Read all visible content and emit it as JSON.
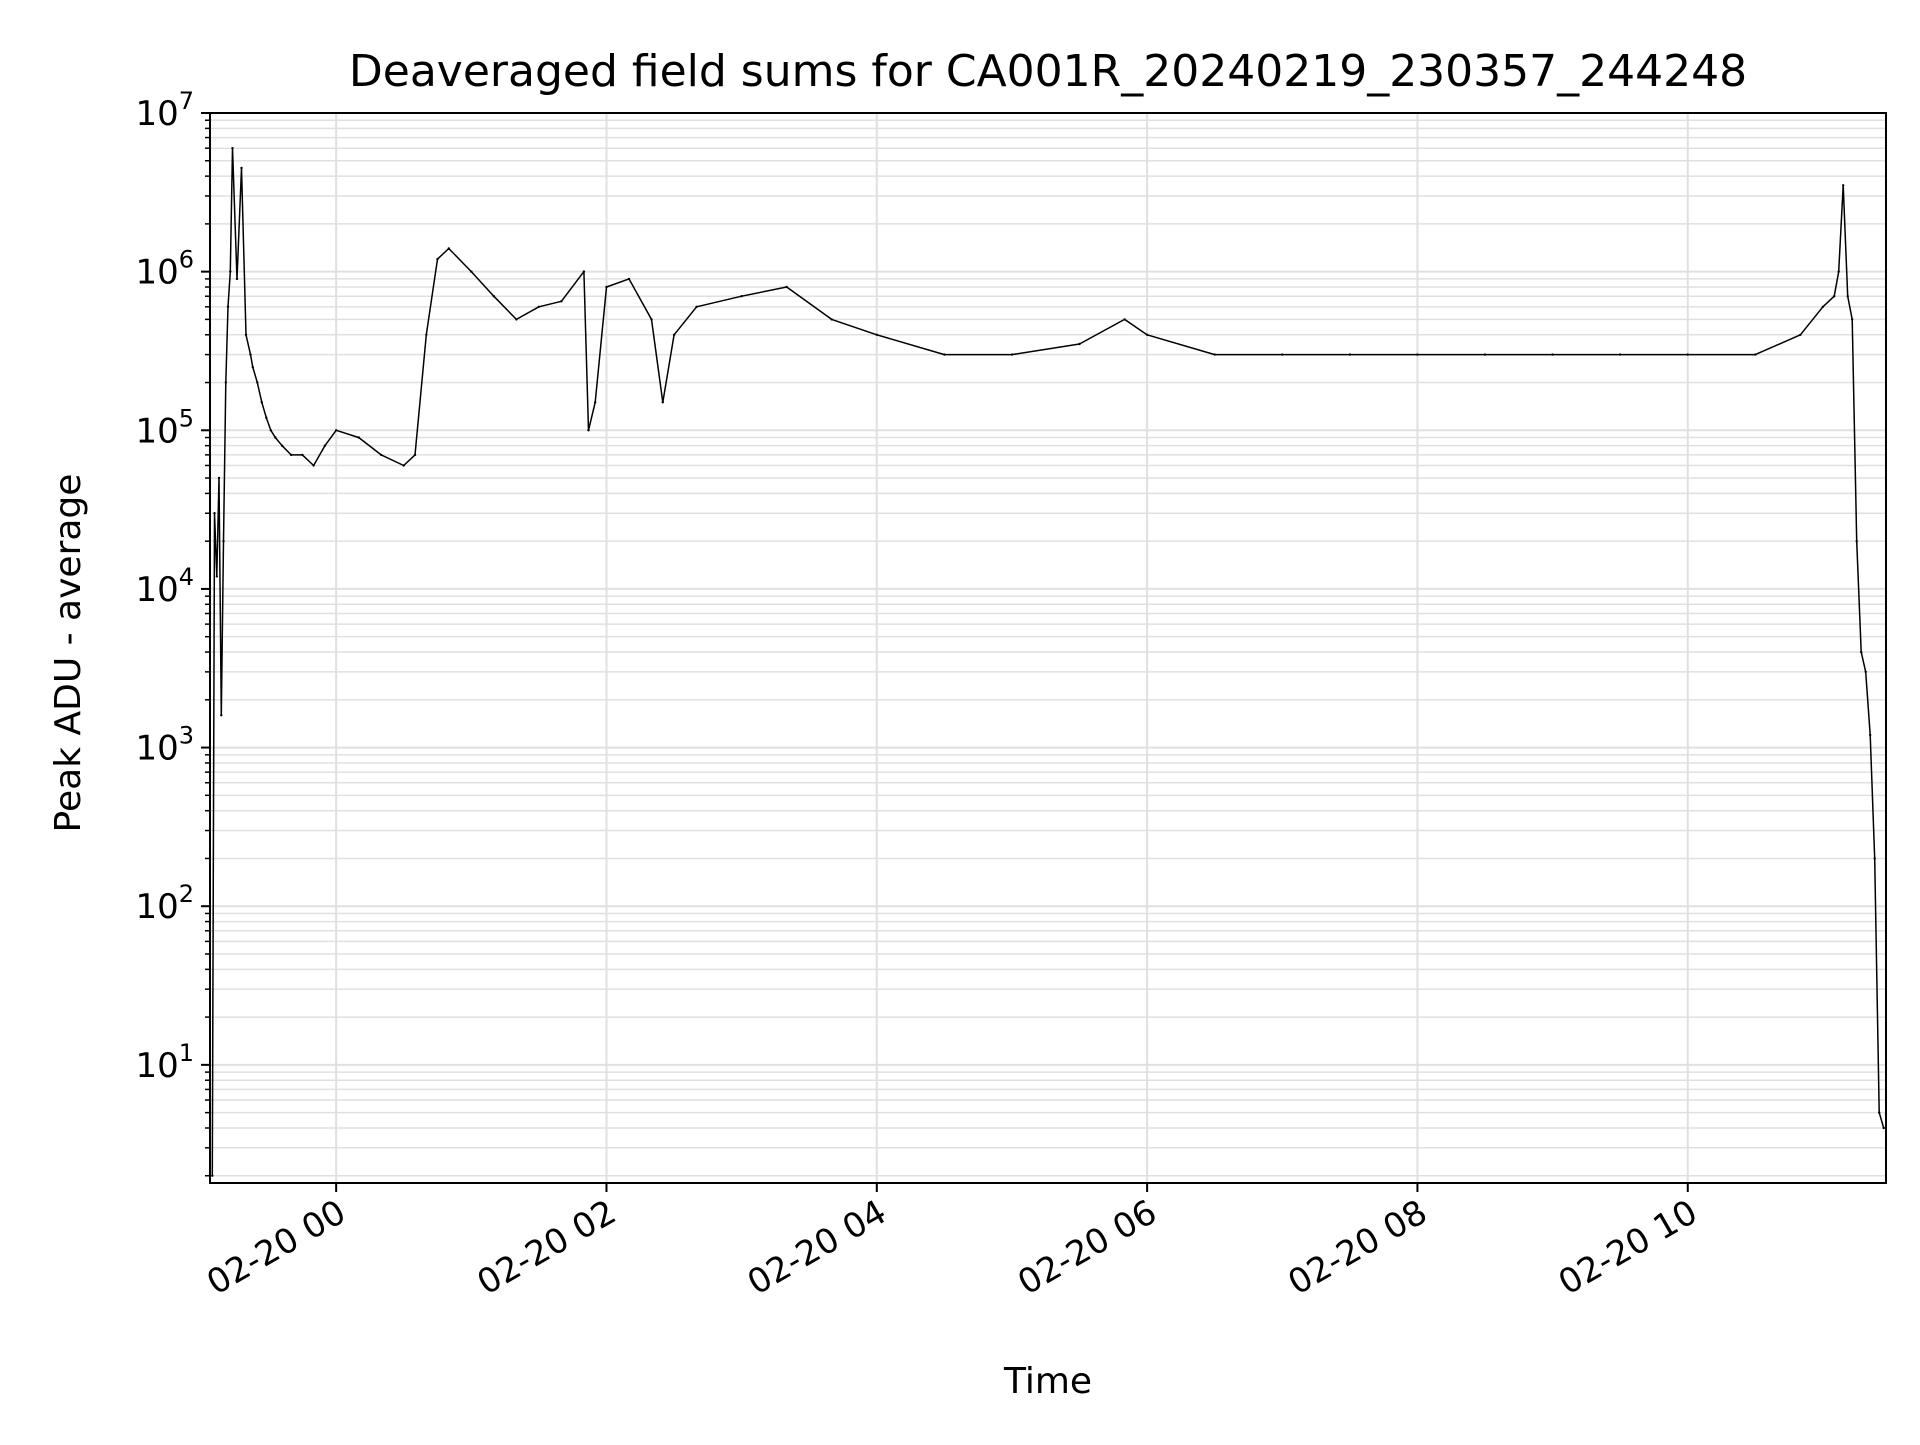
{
  "chart_data": {
    "type": "line",
    "title": "Deaveraged field sums for CA001R_20240219_230357_244248",
    "xlabel": "Time",
    "ylabel": "Peak ADU - average",
    "yscale": "log",
    "ylim": [
      1.8,
      10000000
    ],
    "xlim": [
      "2024-02-19 23:04",
      "2024-02-20 11:28"
    ],
    "grid": true,
    "legend": "none",
    "x_tick_labels": [
      "02-20 00",
      "02-20 02",
      "02-20 04",
      "02-20 06",
      "02-20 08",
      "02-20 10"
    ],
    "x_ticks": [
      "2024-02-20 00:00",
      "2024-02-20 02:00",
      "2024-02-20 04:00",
      "2024-02-20 06:00",
      "2024-02-20 08:00",
      "2024-02-20 10:00"
    ],
    "y_ticks": [
      10,
      100,
      1000,
      10000,
      100000,
      1000000,
      10000000
    ],
    "y_tick_labels": [
      {
        "base": "10",
        "exp": "1"
      },
      {
        "base": "10",
        "exp": "2"
      },
      {
        "base": "10",
        "exp": "3"
      },
      {
        "base": "10",
        "exp": "4"
      },
      {
        "base": "10",
        "exp": "5"
      },
      {
        "base": "10",
        "exp": "6"
      },
      {
        "base": "10",
        "exp": "7"
      }
    ],
    "line_color": "#000000",
    "grid_color": "#e0e0e0",
    "series": [
      {
        "x": [
          "2024-02-19 23:05",
          "2024-02-19 23:06",
          "2024-02-19 23:07",
          "2024-02-19 23:08",
          "2024-02-19 23:09",
          "2024-02-19 23:10",
          "2024-02-19 23:11",
          "2024-02-19 23:12",
          "2024-02-19 23:13",
          "2024-02-19 23:14",
          "2024-02-19 23:16",
          "2024-02-19 23:18",
          "2024-02-19 23:20",
          "2024-02-19 23:22",
          "2024-02-19 23:23",
          "2024-02-19 23:25",
          "2024-02-19 23:27",
          "2024-02-19 23:29",
          "2024-02-19 23:31",
          "2024-02-19 23:33",
          "2024-02-19 23:36",
          "2024-02-19 23:40",
          "2024-02-19 23:45",
          "2024-02-19 23:50",
          "2024-02-19 23:55",
          "2024-02-20 00:00",
          "2024-02-20 00:10",
          "2024-02-20 00:20",
          "2024-02-20 00:30",
          "2024-02-20 00:35",
          "2024-02-20 00:40",
          "2024-02-20 00:45",
          "2024-02-20 00:50",
          "2024-02-20 01:00",
          "2024-02-20 01:10",
          "2024-02-20 01:20",
          "2024-02-20 01:30",
          "2024-02-20 01:40",
          "2024-02-20 01:50",
          "2024-02-20 01:52",
          "2024-02-20 01:55",
          "2024-02-20 02:00",
          "2024-02-20 02:10",
          "2024-02-20 02:20",
          "2024-02-20 02:25",
          "2024-02-20 02:30",
          "2024-02-20 02:40",
          "2024-02-20 03:00",
          "2024-02-20 03:20",
          "2024-02-20 03:40",
          "2024-02-20 04:00",
          "2024-02-20 04:30",
          "2024-02-20 05:00",
          "2024-02-20 05:30",
          "2024-02-20 05:50",
          "2024-02-20 06:00",
          "2024-02-20 06:30",
          "2024-02-20 07:00",
          "2024-02-20 07:30",
          "2024-02-20 08:00",
          "2024-02-20 08:30",
          "2024-02-20 09:00",
          "2024-02-20 09:30",
          "2024-02-20 10:00",
          "2024-02-20 10:30",
          "2024-02-20 10:50",
          "2024-02-20 11:00",
          "2024-02-20 11:05",
          "2024-02-20 11:07",
          "2024-02-20 11:09",
          "2024-02-20 11:11",
          "2024-02-20 11:13",
          "2024-02-20 11:15",
          "2024-02-20 11:17",
          "2024-02-20 11:19",
          "2024-02-20 11:21",
          "2024-02-20 11:23",
          "2024-02-20 11:25",
          "2024-02-20 11:27"
        ],
        "y": [
          2,
          30000,
          12000,
          50000,
          1600,
          20000,
          200000,
          600000,
          1000000,
          6000000,
          900000,
          4500000,
          400000,
          300000,
          250000,
          200000,
          150000,
          120000,
          100000,
          90000,
          80000,
          70000,
          70000,
          60000,
          80000,
          100000,
          90000,
          70000,
          60000,
          70000,
          400000,
          1200000,
          1400000,
          1000000,
          700000,
          500000,
          600000,
          650000,
          1000000,
          100000,
          150000,
          800000,
          900000,
          500000,
          150000,
          400000,
          600000,
          700000,
          800000,
          500000,
          400000,
          300000,
          300000,
          350000,
          500000,
          400000,
          300000,
          300000,
          300000,
          300000,
          300000,
          300000,
          300000,
          300000,
          300000,
          400000,
          600000,
          700000,
          1000000,
          3500000,
          700000,
          500000,
          20000,
          4000,
          3000,
          1200,
          200,
          5,
          4
        ]
      }
    ]
  }
}
